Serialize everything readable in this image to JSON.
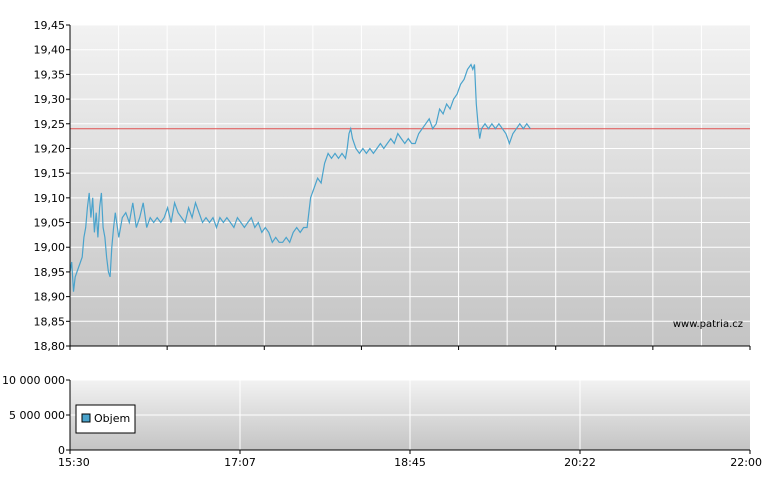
{
  "watermark": "www.patria.cz",
  "chart_data": [
    {
      "type": "line",
      "title": "",
      "xlabel": "",
      "ylabel": "",
      "ylim": [
        18.8,
        19.45
      ],
      "y_ticks": [
        "19,45",
        "19,40",
        "19,35",
        "19,30",
        "19,25",
        "19,20",
        "19,15",
        "19,10",
        "19,05",
        "19,00",
        "18,95",
        "18,90",
        "18,85",
        "18,80"
      ],
      "x_range_minutes": [
        930,
        1320
      ],
      "reference_line": {
        "value": 19.24,
        "color": "#e05050"
      },
      "grid": true,
      "series": [
        {
          "color": "#4aa3cc",
          "points": [
            [
              930,
              18.95
            ],
            [
              931,
              18.97
            ],
            [
              932,
              18.91
            ],
            [
              933,
              18.94
            ],
            [
              935,
              18.96
            ],
            [
              937,
              18.98
            ],
            [
              938,
              19.02
            ],
            [
              939,
              19.04
            ],
            [
              940,
              19.08
            ],
            [
              941,
              19.11
            ],
            [
              942,
              19.06
            ],
            [
              943,
              19.1
            ],
            [
              944,
              19.03
            ],
            [
              945,
              19.07
            ],
            [
              946,
              19.02
            ],
            [
              947,
              19.08
            ],
            [
              948,
              19.11
            ],
            [
              949,
              19.04
            ],
            [
              950,
              19.02
            ],
            [
              951,
              18.98
            ],
            [
              952,
              18.95
            ],
            [
              953,
              18.94
            ],
            [
              954,
              19.0
            ],
            [
              955,
              19.04
            ],
            [
              956,
              19.07
            ],
            [
              958,
              19.02
            ],
            [
              960,
              19.06
            ],
            [
              962,
              19.07
            ],
            [
              964,
              19.05
            ],
            [
              966,
              19.09
            ],
            [
              968,
              19.04
            ],
            [
              970,
              19.06
            ],
            [
              972,
              19.09
            ],
            [
              974,
              19.04
            ],
            [
              976,
              19.06
            ],
            [
              978,
              19.05
            ],
            [
              980,
              19.06
            ],
            [
              982,
              19.05
            ],
            [
              984,
              19.06
            ],
            [
              986,
              19.08
            ],
            [
              988,
              19.05
            ],
            [
              990,
              19.09
            ],
            [
              992,
              19.07
            ],
            [
              994,
              19.06
            ],
            [
              996,
              19.05
            ],
            [
              998,
              19.08
            ],
            [
              1000,
              19.06
            ],
            [
              1002,
              19.09
            ],
            [
              1004,
              19.07
            ],
            [
              1006,
              19.05
            ],
            [
              1008,
              19.06
            ],
            [
              1010,
              19.05
            ],
            [
              1012,
              19.06
            ],
            [
              1014,
              19.04
            ],
            [
              1016,
              19.06
            ],
            [
              1018,
              19.05
            ],
            [
              1020,
              19.06
            ],
            [
              1022,
              19.05
            ],
            [
              1024,
              19.04
            ],
            [
              1026,
              19.06
            ],
            [
              1028,
              19.05
            ],
            [
              1030,
              19.04
            ],
            [
              1032,
              19.05
            ],
            [
              1034,
              19.06
            ],
            [
              1036,
              19.04
            ],
            [
              1038,
              19.05
            ],
            [
              1040,
              19.03
            ],
            [
              1042,
              19.04
            ],
            [
              1044,
              19.03
            ],
            [
              1046,
              19.01
            ],
            [
              1048,
              19.02
            ],
            [
              1050,
              19.01
            ],
            [
              1052,
              19.01
            ],
            [
              1054,
              19.02
            ],
            [
              1056,
              19.01
            ],
            [
              1058,
              19.03
            ],
            [
              1060,
              19.04
            ],
            [
              1062,
              19.03
            ],
            [
              1064,
              19.04
            ],
            [
              1066,
              19.04
            ],
            [
              1068,
              19.1
            ],
            [
              1070,
              19.12
            ],
            [
              1072,
              19.14
            ],
            [
              1074,
              19.13
            ],
            [
              1076,
              19.17
            ],
            [
              1078,
              19.19
            ],
            [
              1080,
              19.18
            ],
            [
              1082,
              19.19
            ],
            [
              1084,
              19.18
            ],
            [
              1086,
              19.19
            ],
            [
              1088,
              19.18
            ],
            [
              1089,
              19.2
            ],
            [
              1090,
              19.23
            ],
            [
              1091,
              19.24
            ],
            [
              1092,
              19.22
            ],
            [
              1094,
              19.2
            ],
            [
              1096,
              19.19
            ],
            [
              1098,
              19.2
            ],
            [
              1100,
              19.19
            ],
            [
              1102,
              19.2
            ],
            [
              1104,
              19.19
            ],
            [
              1106,
              19.2
            ],
            [
              1108,
              19.21
            ],
            [
              1110,
              19.2
            ],
            [
              1112,
              19.21
            ],
            [
              1114,
              19.22
            ],
            [
              1116,
              19.21
            ],
            [
              1118,
              19.23
            ],
            [
              1120,
              19.22
            ],
            [
              1122,
              19.21
            ],
            [
              1124,
              19.22
            ],
            [
              1126,
              19.21
            ],
            [
              1128,
              19.21
            ],
            [
              1130,
              19.23
            ],
            [
              1132,
              19.24
            ],
            [
              1134,
              19.25
            ],
            [
              1136,
              19.26
            ],
            [
              1138,
              19.24
            ],
            [
              1140,
              19.25
            ],
            [
              1142,
              19.28
            ],
            [
              1144,
              19.27
            ],
            [
              1146,
              19.29
            ],
            [
              1148,
              19.28
            ],
            [
              1150,
              19.3
            ],
            [
              1152,
              19.31
            ],
            [
              1154,
              19.33
            ],
            [
              1156,
              19.34
            ],
            [
              1158,
              19.36
            ],
            [
              1160,
              19.37
            ],
            [
              1161,
              19.36
            ],
            [
              1162,
              19.37
            ],
            [
              1163,
              19.29
            ],
            [
              1164,
              19.25
            ],
            [
              1165,
              19.22
            ],
            [
              1166,
              19.24
            ],
            [
              1168,
              19.25
            ],
            [
              1170,
              19.24
            ],
            [
              1172,
              19.25
            ],
            [
              1174,
              19.24
            ],
            [
              1176,
              19.25
            ],
            [
              1178,
              19.24
            ],
            [
              1180,
              19.23
            ],
            [
              1182,
              19.21
            ],
            [
              1184,
              19.23
            ],
            [
              1186,
              19.24
            ],
            [
              1188,
              19.25
            ],
            [
              1190,
              19.24
            ],
            [
              1192,
              19.25
            ],
            [
              1194,
              19.24
            ]
          ]
        }
      ]
    },
    {
      "type": "bar",
      "title": "",
      "ylim": [
        0,
        10000000
      ],
      "y_ticks": [
        "10 000 000",
        "5 000 000",
        "0"
      ],
      "x_ticks": [
        "15:30",
        "17:07",
        "18:45",
        "20:22",
        "22:00"
      ],
      "legend": {
        "entries": [
          "Objem"
        ],
        "placement": "bottom-left",
        "color": "#4aa3cc"
      },
      "grid": true,
      "series": [
        {
          "name": "Objem",
          "values": []
        }
      ]
    }
  ]
}
